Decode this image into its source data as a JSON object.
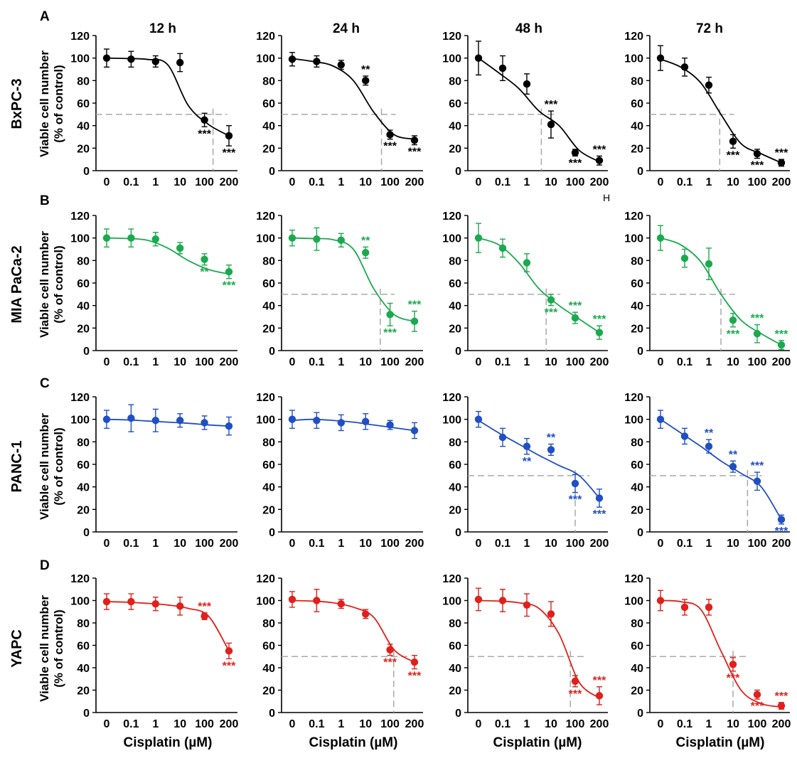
{
  "time_labels": [
    "12 h",
    "24 h",
    "48 h",
    "72 h"
  ],
  "x_axis_label": "Cisplatin (µM)",
  "y_axis_label_line1": "Viable cell number",
  "y_axis_label_line2": "(% of control)",
  "stray_mark": "H",
  "rows": [
    {
      "letter": "A",
      "cell_line": "BxPC-3",
      "color": "#000000"
    },
    {
      "letter": "B",
      "cell_line": "MIA PaCa-2",
      "color": "#1aaa4e"
    },
    {
      "letter": "C",
      "cell_line": "PANC-1",
      "color": "#1f4fc4"
    },
    {
      "letter": "D",
      "cell_line": "YAPC",
      "color": "#e0201b"
    }
  ],
  "chart_data": [
    {
      "type": "scatter",
      "row": "A",
      "cell_line": "BxPC-3",
      "time": "12 h",
      "categories": [
        "0",
        "0.1",
        "1",
        "10",
        "100",
        "200"
      ],
      "ylim": [
        0,
        120
      ],
      "yticks": [
        0,
        20,
        40,
        60,
        80,
        100,
        120
      ],
      "values": [
        100,
        99,
        97,
        96,
        45,
        31
      ],
      "errors": [
        8,
        7,
        5,
        8,
        6,
        9
      ],
      "fit": [
        100,
        99.6,
        98.8,
        94,
        58,
        41,
        31
      ],
      "ic50": 4.35,
      "annotations": [
        {
          "index": 4,
          "text": "***",
          "pos": "below"
        },
        {
          "index": 5,
          "text": "***",
          "pos": "below"
        }
      ]
    },
    {
      "type": "scatter",
      "row": "A",
      "cell_line": "BxPC-3",
      "time": "24 h",
      "categories": [
        "0",
        "0.1",
        "1",
        "10",
        "100",
        "200"
      ],
      "ylim": [
        0,
        120
      ],
      "yticks": [
        0,
        20,
        40,
        60,
        80,
        100,
        120
      ],
      "values": [
        99,
        97,
        94,
        80,
        32,
        27
      ],
      "errors": [
        6,
        5,
        4,
        4,
        4,
        4
      ],
      "fit": [
        99.5,
        97,
        93,
        80,
        52,
        32,
        28
      ],
      "ic50": 3.65,
      "annotations": [
        {
          "index": 3,
          "text": "**",
          "pos": "above"
        },
        {
          "index": 4,
          "text": "***",
          "pos": "below"
        },
        {
          "index": 5,
          "text": "***",
          "pos": "below"
        }
      ]
    },
    {
      "type": "scatter",
      "row": "A",
      "cell_line": "BxPC-3",
      "time": "48 h",
      "categories": [
        "0",
        "0.1",
        "1",
        "10",
        "100",
        "200"
      ],
      "ylim": [
        0,
        120
      ],
      "yticks": [
        0,
        20,
        40,
        60,
        80,
        100,
        120
      ],
      "values": [
        100,
        91,
        77,
        41,
        16,
        9
      ],
      "errors": [
        15,
        11,
        9,
        12,
        3,
        4
      ],
      "fit": [
        100,
        87,
        73,
        53,
        40,
        18,
        8
      ],
      "ic50": 2.6,
      "annotations": [
        {
          "index": 3,
          "text": "***",
          "pos": "above"
        },
        {
          "index": 4,
          "text": "***",
          "pos": "below"
        },
        {
          "index": 5,
          "text": "***",
          "pos": "above"
        }
      ]
    },
    {
      "type": "scatter",
      "row": "A",
      "cell_line": "BxPC-3",
      "time": "72 h",
      "categories": [
        "0",
        "0.1",
        "1",
        "10",
        "100",
        "200"
      ],
      "ylim": [
        0,
        120
      ],
      "yticks": [
        0,
        20,
        40,
        60,
        80,
        100,
        120
      ],
      "values": [
        100,
        92,
        76,
        26,
        15,
        7
      ],
      "errors": [
        11,
        8,
        7,
        6,
        4,
        3
      ],
      "fit": [
        99,
        92,
        78,
        50,
        24,
        15,
        7
      ],
      "ic50": 2.45,
      "annotations": [
        {
          "index": 3,
          "text": "***",
          "pos": "below"
        },
        {
          "index": 4,
          "text": "***",
          "pos": "below"
        },
        {
          "index": 5,
          "text": "***",
          "pos": "above"
        }
      ]
    },
    {
      "type": "scatter",
      "row": "B",
      "cell_line": "MIA PaCa-2",
      "time": "12 h",
      "categories": [
        "0",
        "0.1",
        "1",
        "10",
        "100",
        "200"
      ],
      "ylim": [
        0,
        120
      ],
      "yticks": [
        0,
        20,
        40,
        60,
        80,
        100,
        120
      ],
      "values": [
        100,
        100,
        99,
        91,
        81,
        70
      ],
      "errors": [
        8,
        8,
        6,
        5,
        5,
        6
      ],
      "fit": [
        100,
        99.5,
        98,
        91,
        80,
        72,
        68
      ],
      "ic50": null,
      "annotations": [
        {
          "index": 4,
          "text": "**",
          "pos": "below"
        },
        {
          "index": 5,
          "text": "***",
          "pos": "below"
        }
      ]
    },
    {
      "type": "scatter",
      "row": "B",
      "cell_line": "MIA PaCa-2",
      "time": "24 h",
      "categories": [
        "0",
        "0.1",
        "1",
        "10",
        "100",
        "200"
      ],
      "ylim": [
        0,
        120
      ],
      "yticks": [
        0,
        20,
        40,
        60,
        80,
        100,
        120
      ],
      "values": [
        100,
        99,
        98,
        87,
        32,
        26
      ],
      "errors": [
        7,
        10,
        6,
        5,
        10,
        9
      ],
      "fit": [
        100,
        99.5,
        98.5,
        90,
        55,
        32,
        26
      ],
      "ic50": 3.6,
      "annotations": [
        {
          "index": 3,
          "text": "**",
          "pos": "above"
        },
        {
          "index": 4,
          "text": "***",
          "pos": "below"
        },
        {
          "index": 5,
          "text": "***",
          "pos": "above"
        }
      ]
    },
    {
      "type": "scatter",
      "row": "B",
      "cell_line": "MIA PaCa-2",
      "time": "48 h",
      "categories": [
        "0",
        "0.1",
        "1",
        "10",
        "100",
        "200"
      ],
      "ylim": [
        0,
        120
      ],
      "yticks": [
        0,
        20,
        40,
        60,
        80,
        100,
        120
      ],
      "values": [
        100,
        91,
        78,
        45,
        29,
        16
      ],
      "errors": [
        13,
        8,
        8,
        5,
        5,
        6
      ],
      "fit": [
        100,
        94,
        78,
        55,
        40,
        28,
        16
      ],
      "ic50": 2.8,
      "annotations": [
        {
          "index": 3,
          "text": "***",
          "pos": "below"
        },
        {
          "index": 4,
          "text": "***",
          "pos": "above"
        },
        {
          "index": 5,
          "text": "***",
          "pos": "above"
        }
      ]
    },
    {
      "type": "scatter",
      "row": "B",
      "cell_line": "MIA PaCa-2",
      "time": "72 h",
      "categories": [
        "0",
        "0.1",
        "1",
        "10",
        "100",
        "200"
      ],
      "ylim": [
        0,
        120
      ],
      "yticks": [
        0,
        20,
        40,
        60,
        80,
        100,
        120
      ],
      "values": [
        100,
        82,
        77,
        27,
        15,
        5
      ],
      "errors": [
        11,
        8,
        14,
        6,
        8,
        4
      ],
      "fit": [
        100,
        94,
        79,
        50,
        27,
        15,
        5
      ],
      "ic50": 2.5,
      "annotations": [
        {
          "index": 3,
          "text": "***",
          "pos": "below"
        },
        {
          "index": 4,
          "text": "***",
          "pos": "above"
        },
        {
          "index": 5,
          "text": "***",
          "pos": "above"
        }
      ]
    },
    {
      "type": "scatter",
      "row": "C",
      "cell_line": "PANC-1",
      "time": "12 h",
      "categories": [
        "0",
        "0.1",
        "1",
        "10",
        "100",
        "200"
      ],
      "ylim": [
        0,
        120
      ],
      "yticks": [
        0,
        20,
        40,
        60,
        80,
        100,
        120
      ],
      "values": [
        100,
        101,
        99,
        99,
        97,
        94
      ],
      "errors": [
        8,
        12,
        10,
        6,
        6,
        8
      ],
      "fit": [
        100,
        99.5,
        98.5,
        97.5,
        96.5,
        95,
        94
      ],
      "ic50": null,
      "annotations": []
    },
    {
      "type": "scatter",
      "row": "C",
      "cell_line": "PANC-1",
      "time": "24 h",
      "categories": [
        "0",
        "0.1",
        "1",
        "10",
        "100",
        "200"
      ],
      "ylim": [
        0,
        120
      ],
      "yticks": [
        0,
        20,
        40,
        60,
        80,
        100,
        120
      ],
      "values": [
        100,
        99,
        97,
        98,
        95,
        90
      ],
      "errors": [
        8,
        7,
        7,
        7,
        4,
        7
      ],
      "fit": [
        99,
        100,
        99,
        97.5,
        95,
        92.5,
        90
      ],
      "ic50": null,
      "annotations": []
    },
    {
      "type": "scatter",
      "row": "C",
      "cell_line": "PANC-1",
      "time": "48 h",
      "categories": [
        "0",
        "0.1",
        "1",
        "10",
        "100",
        "200"
      ],
      "ylim": [
        0,
        120
      ],
      "yticks": [
        0,
        20,
        40,
        60,
        80,
        100,
        120
      ],
      "values": [
        100,
        84,
        76,
        73,
        43,
        30
      ],
      "errors": [
        7,
        8,
        7,
        5,
        8,
        8
      ],
      "fit": [
        99,
        88,
        78,
        68,
        59,
        50,
        30
      ],
      "ic50": 4.0,
      "annotations": [
        {
          "index": 2,
          "text": "**",
          "pos": "below"
        },
        {
          "index": 3,
          "text": "**",
          "pos": "above"
        },
        {
          "index": 4,
          "text": "***",
          "pos": "below"
        },
        {
          "index": 5,
          "text": "***",
          "pos": "below"
        }
      ]
    },
    {
      "type": "scatter",
      "row": "C",
      "cell_line": "PANC-1",
      "time": "72 h",
      "categories": [
        "0",
        "0.1",
        "1",
        "10",
        "100",
        "200"
      ],
      "ylim": [
        0,
        120
      ],
      "yticks": [
        0,
        20,
        40,
        60,
        80,
        100,
        120
      ],
      "values": [
        100,
        85,
        76,
        58,
        45,
        11
      ],
      "errors": [
        8,
        7,
        6,
        5,
        8,
        4
      ],
      "fit": [
        100,
        88,
        76,
        63,
        52,
        40,
        11
      ],
      "ic50": 3.6,
      "annotations": [
        {
          "index": 2,
          "text": "**",
          "pos": "above"
        },
        {
          "index": 3,
          "text": "**",
          "pos": "above"
        },
        {
          "index": 4,
          "text": "***",
          "pos": "above"
        },
        {
          "index": 5,
          "text": "***",
          "pos": "below"
        }
      ]
    },
    {
      "type": "scatter",
      "row": "D",
      "cell_line": "YAPC",
      "time": "12 h",
      "categories": [
        "0",
        "0.1",
        "1",
        "10",
        "100",
        "200"
      ],
      "ylim": [
        0,
        120
      ],
      "yticks": [
        0,
        20,
        40,
        60,
        80,
        100,
        120
      ],
      "values": [
        99,
        99,
        97,
        95,
        86,
        55
      ],
      "errors": [
        7,
        7,
        6,
        8,
        3,
        7
      ],
      "fit": [
        99,
        98.5,
        97.5,
        96,
        93,
        86,
        55
      ],
      "ic50": null,
      "annotations": [
        {
          "index": 4,
          "text": "***",
          "pos": "above"
        },
        {
          "index": 5,
          "text": "***",
          "pos": "below"
        }
      ]
    },
    {
      "type": "scatter",
      "row": "D",
      "cell_line": "YAPC",
      "time": "24 h",
      "categories": [
        "0",
        "0.1",
        "1",
        "10",
        "100",
        "200"
      ],
      "ylim": [
        0,
        120
      ],
      "yticks": [
        0,
        20,
        40,
        60,
        80,
        100,
        120
      ],
      "values": [
        101,
        100,
        97,
        88,
        56,
        45
      ],
      "errors": [
        7,
        10,
        4,
        4,
        5,
        6
      ],
      "fit": [
        100,
        99.5,
        98,
        94,
        85,
        56,
        45
      ],
      "ic50": 4.15,
      "annotations": [
        {
          "index": 4,
          "text": "***",
          "pos": "below"
        },
        {
          "index": 5,
          "text": "***",
          "pos": "below"
        }
      ]
    },
    {
      "type": "scatter",
      "row": "D",
      "cell_line": "YAPC",
      "time": "48 h",
      "categories": [
        "0",
        "0.1",
        "1",
        "10",
        "100",
        "200"
      ],
      "ylim": [
        0,
        120
      ],
      "yticks": [
        0,
        20,
        40,
        60,
        80,
        100,
        120
      ],
      "values": [
        101,
        100,
        96,
        88,
        28,
        15
      ],
      "errors": [
        10,
        10,
        10,
        11,
        5,
        8
      ],
      "fit": [
        100,
        99.5,
        98,
        93,
        70,
        27,
        13
      ],
      "ic50": 3.8,
      "annotations": [
        {
          "index": 4,
          "text": "***",
          "pos": "below"
        },
        {
          "index": 5,
          "text": "***",
          "pos": "above"
        }
      ]
    },
    {
      "type": "scatter",
      "row": "D",
      "cell_line": "YAPC",
      "time": "72 h",
      "categories": [
        "0",
        "0.1",
        "1",
        "10",
        "100",
        "200"
      ],
      "ylim": [
        0,
        120
      ],
      "yticks": [
        0,
        20,
        40,
        60,
        80,
        100,
        120
      ],
      "values": [
        100,
        94,
        94,
        43,
        16,
        6
      ],
      "errors": [
        9,
        7,
        7,
        6,
        4,
        3
      ],
      "fit": [
        100,
        99,
        92,
        55,
        20,
        8,
        5
      ],
      "ic50": 3.0,
      "annotations": [
        {
          "index": 3,
          "text": "***",
          "pos": "below"
        },
        {
          "index": 4,
          "text": "***",
          "pos": "below"
        },
        {
          "index": 5,
          "text": "***",
          "pos": "above"
        }
      ]
    }
  ]
}
